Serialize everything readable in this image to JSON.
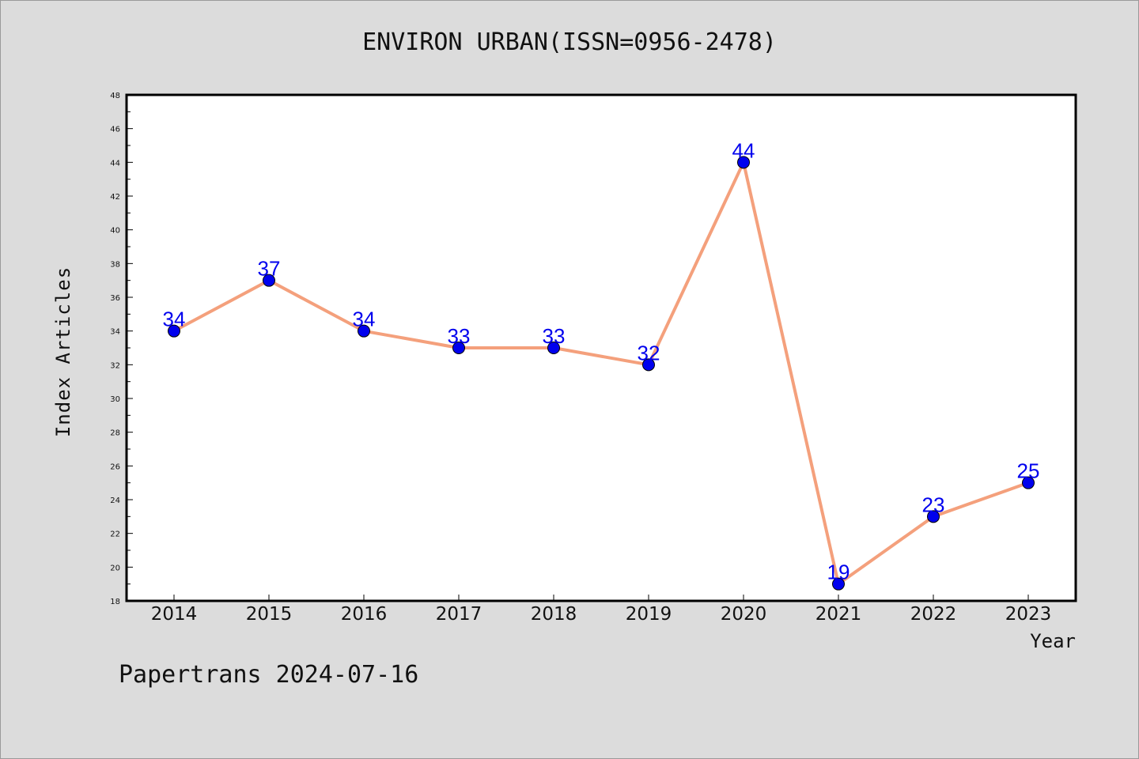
{
  "chart_data": {
    "type": "line",
    "title": "ENVIRON URBAN(ISSN=0956-2478)",
    "xlabel": "Year",
    "ylabel": "Index Articles",
    "categories": [
      "2014",
      "2015",
      "2016",
      "2017",
      "2018",
      "2019",
      "2020",
      "2021",
      "2022",
      "2023"
    ],
    "series": [
      {
        "values": [
          34,
          37,
          34,
          33,
          33,
          32,
          44,
          19,
          23,
          25
        ]
      }
    ],
    "data_labels": [
      "34",
      "37",
      "34",
      "33",
      "33",
      "32",
      "44",
      "19",
      "23",
      "25"
    ],
    "ylim": [
      18,
      48
    ],
    "y_ticks": [
      "18",
      "20",
      "22",
      "24",
      "26",
      "28",
      "30",
      "32",
      "34",
      "36",
      "38",
      "40",
      "42",
      "44",
      "46",
      "48"
    ],
    "line_color": "#f4a07c",
    "marker_color": "#0000ee",
    "label_color": "#0000ee",
    "grid": false,
    "legend": "none"
  },
  "footer": "Papertrans 2024-07-16",
  "colors": {
    "background": "#dcdcdc",
    "plot_background": "#ffffff"
  }
}
